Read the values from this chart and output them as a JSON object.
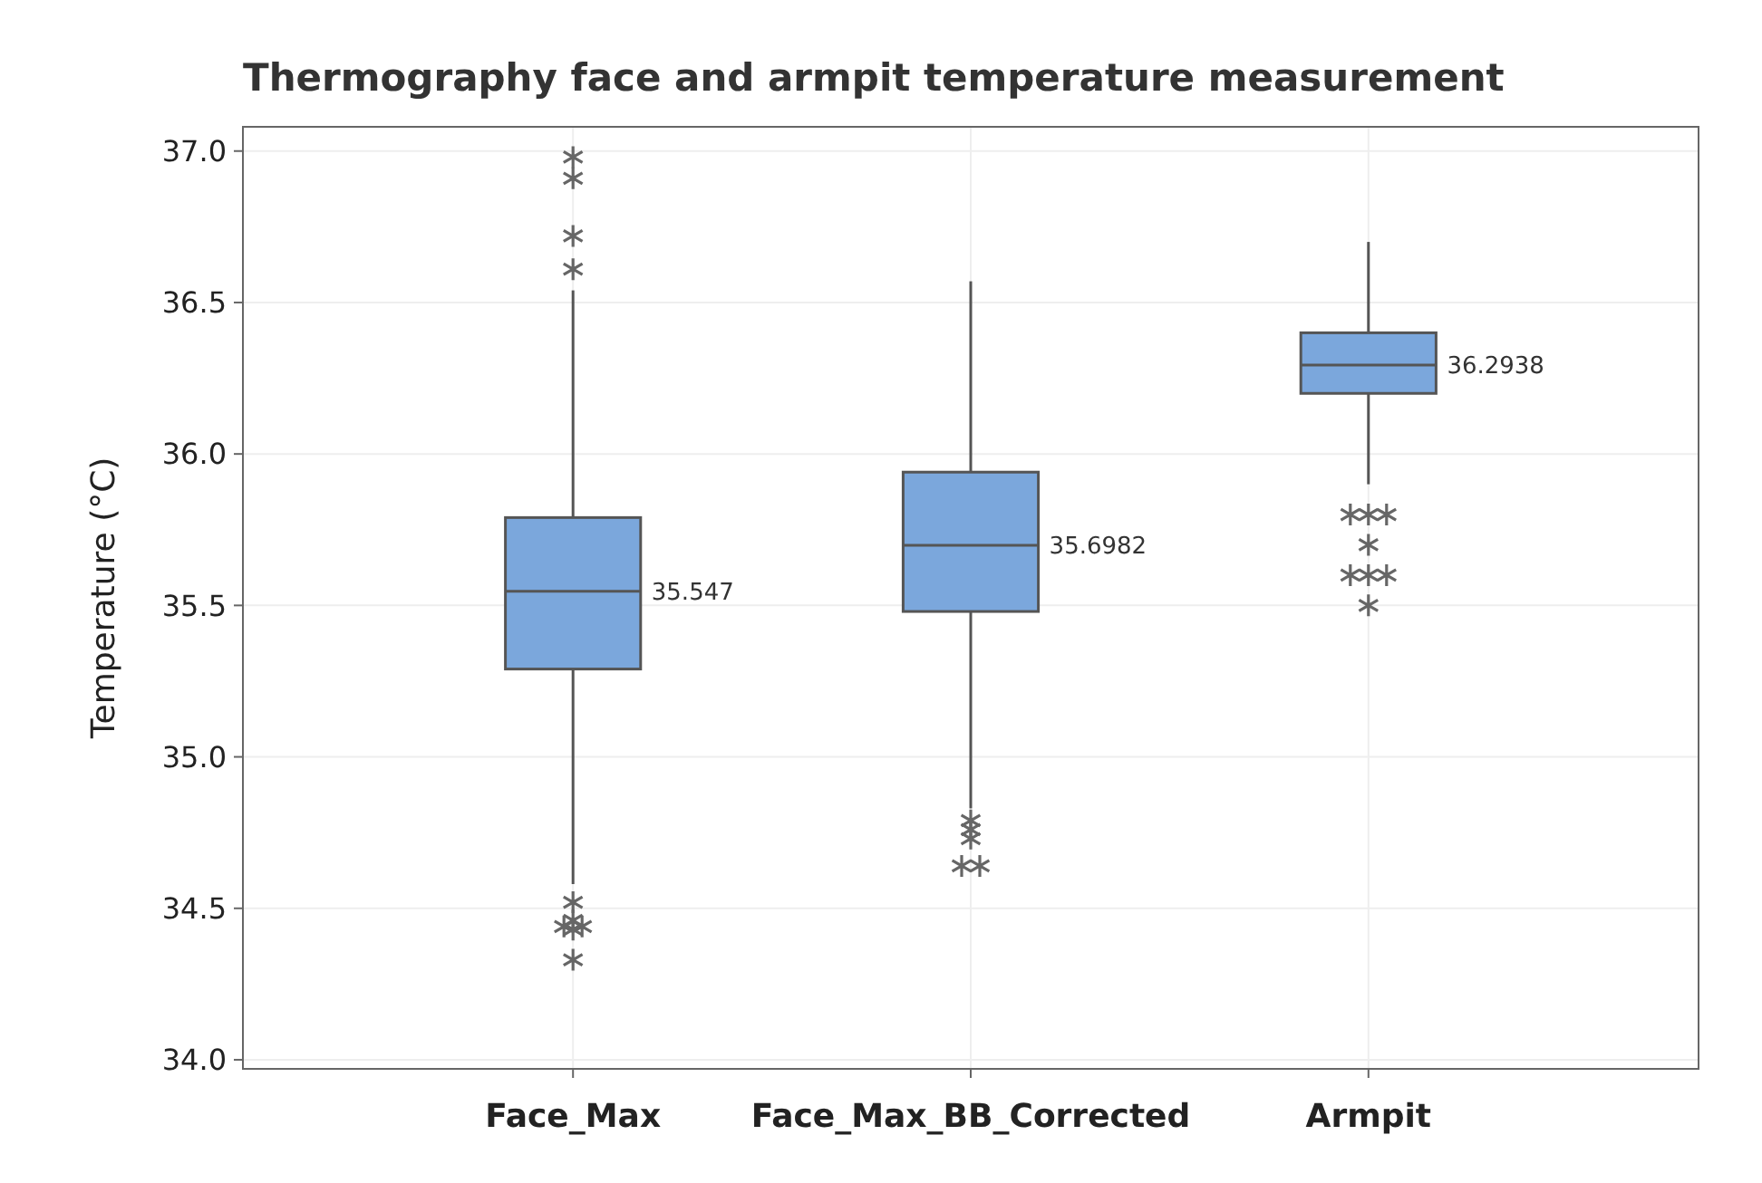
{
  "chart_data": {
    "type": "box",
    "title": "Thermography face and armpit temperature measurement",
    "ylabel": "Temperature (°C)",
    "categories": [
      "Face_Max",
      "Face_Max_BB_Corrected",
      "Armpit"
    ],
    "boxes": [
      {
        "low": 34.58,
        "q1": 35.29,
        "median": 35.547,
        "q3": 35.79,
        "high": 36.54,
        "outliers": [
          36.98,
          36.91,
          36.72,
          36.61,
          34.52,
          34.46,
          34.44,
          34.44,
          34.43,
          34.33
        ]
      },
      {
        "low": 34.83,
        "q1": 35.48,
        "median": 35.6982,
        "q3": 35.94,
        "high": 36.57,
        "outliers": [
          34.79,
          34.76,
          34.73,
          34.64,
          34.64
        ]
      },
      {
        "low": 35.9,
        "q1": 36.2,
        "median": 36.2938,
        "q3": 36.4,
        "high": 36.7,
        "outliers": [
          35.8,
          35.8,
          35.8,
          35.7,
          35.6,
          35.6,
          35.6,
          35.5
        ]
      }
    ],
    "color": "#7ba7dc",
    "annotations": [
      "35.547",
      "35.6982",
      "36.2938"
    ],
    "ylim": [
      33.97,
      37.08
    ],
    "yticks": [
      {
        "value": 34,
        "label": "34.0"
      },
      {
        "value": 34.5,
        "label": "34.5"
      },
      {
        "value": 35,
        "label": "35.0"
      },
      {
        "value": 35.5,
        "label": "35.5"
      },
      {
        "value": 36,
        "label": "36.0"
      },
      {
        "value": 36.5,
        "label": "36.5"
      },
      {
        "value": 37,
        "label": "37.0"
      }
    ],
    "grid": true,
    "marker": "star"
  }
}
